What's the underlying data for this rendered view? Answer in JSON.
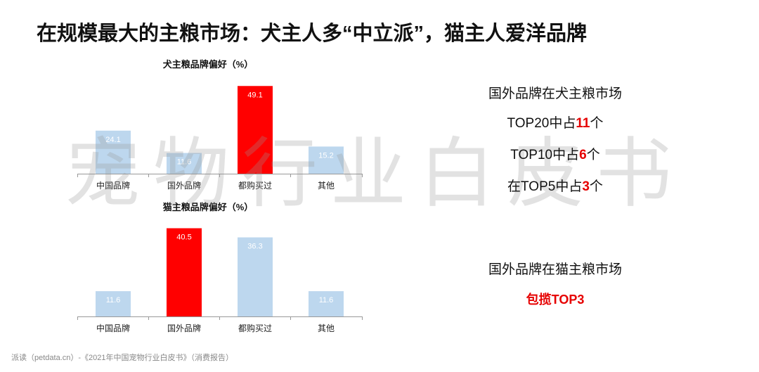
{
  "title": "在规模最大的主粮市场：犬主人多“中立派”，猫主人爱洋品牌",
  "watermark": "宠物行业白皮书",
  "colors": {
    "highlight": "#ff0000",
    "normal": "#bdd7ee",
    "axis": "#999999"
  },
  "chart_data": [
    {
      "id": "dog",
      "type": "bar",
      "title": "犬主粮品牌偏好（%）",
      "categories": [
        "中国品牌",
        "国外品牌",
        "都购买过",
        "其他"
      ],
      "values": [
        24.1,
        11.6,
        49.1,
        15.2
      ],
      "value_labels": [
        "24.1",
        "11.6",
        "49.1",
        "15.2"
      ],
      "highlight_index": 2,
      "ylim": [
        0,
        50
      ]
    },
    {
      "id": "cat",
      "type": "bar",
      "title": "猫主粮品牌偏好（%）",
      "categories": [
        "中国品牌",
        "国外品牌",
        "都购买过",
        "其他"
      ],
      "values": [
        11.6,
        40.5,
        36.3,
        11.6
      ],
      "value_labels": [
        "11.6",
        "40.5",
        "36.3",
        "11.6"
      ],
      "highlight_index": 1,
      "ylim": [
        0,
        41
      ]
    }
  ],
  "notes": {
    "dog_heading": "国外品牌在犬主粮市场",
    "dog_top20_a": "TOP20中占",
    "dog_top20_n": "11",
    "dog_top20_b": "个",
    "dog_top10_a": "TOP10中占",
    "dog_top10_n": "6",
    "dog_top10_b": "个",
    "dog_top5_a": "在TOP5中占",
    "dog_top5_n": "3",
    "dog_top5_b": "个",
    "cat_heading": "国外品牌在猫主粮市场",
    "cat_summary": "包揽TOP3"
  },
  "footer": "派读（petdata.cn）-《2021年中国宠物行业白皮书》（消费报告）"
}
